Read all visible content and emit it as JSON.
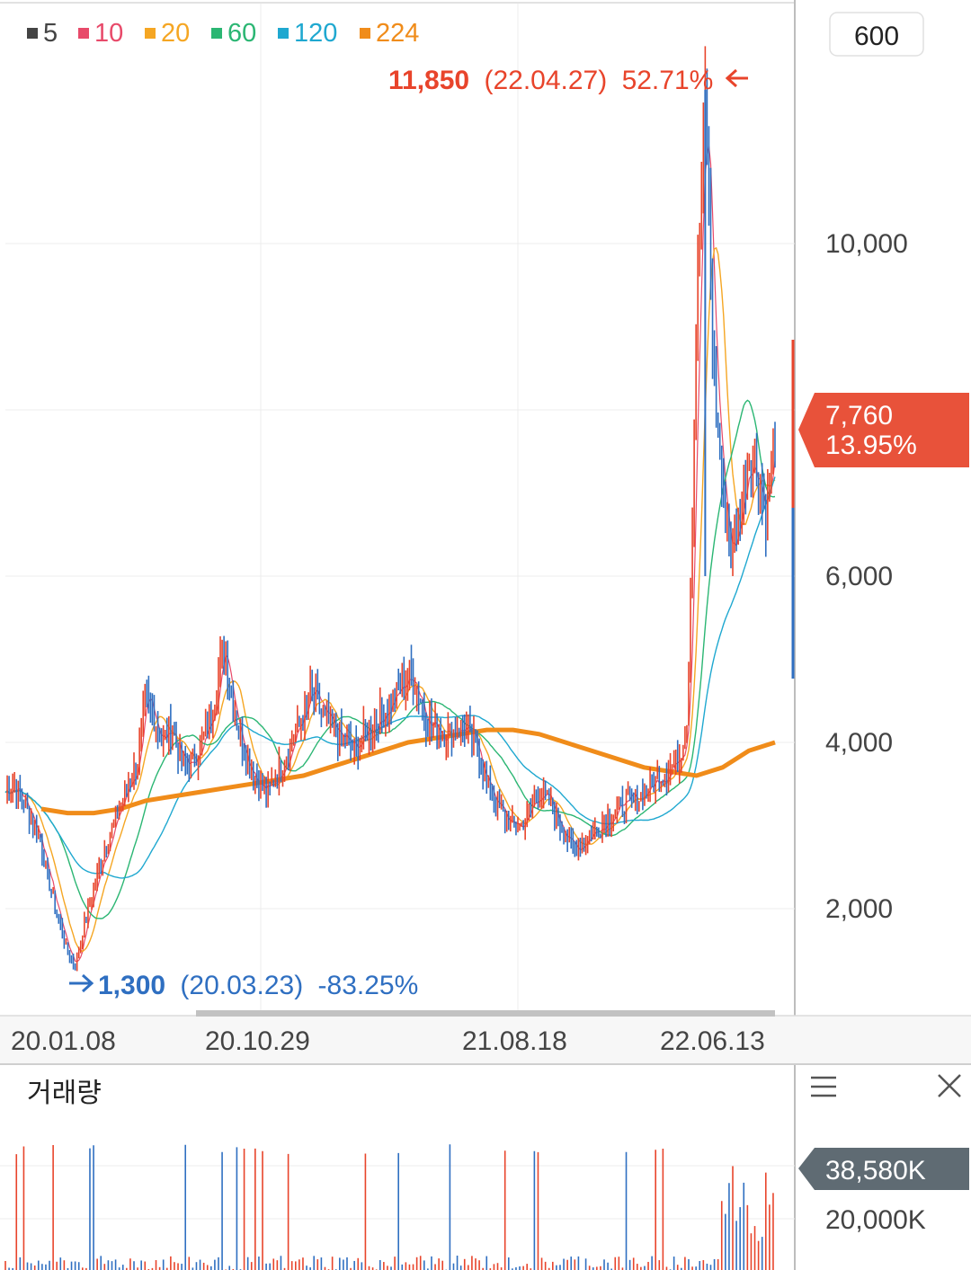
{
  "toolbar": {
    "period_value": "600"
  },
  "legend": [
    {
      "label": "5",
      "color": "#444444"
    },
    {
      "label": "10",
      "color": "#e84a6a"
    },
    {
      "label": "20",
      "color": "#f5a623"
    },
    {
      "label": "60",
      "color": "#2bb673"
    },
    {
      "label": "120",
      "color": "#1fa8d0"
    },
    {
      "label": "224",
      "color": "#f08c1a"
    }
  ],
  "price_axis": {
    "ticks": [
      "10,000",
      "6,000",
      "4,000",
      "2,000"
    ],
    "current_price": "7,760",
    "current_change": "13.95%"
  },
  "annotations": {
    "high": {
      "value": "11,850",
      "date": "(22.04.27)",
      "pct": "52.71%"
    },
    "low": {
      "value": "1,300",
      "date": "(20.03.23)",
      "pct": "-83.25%"
    }
  },
  "x_axis": {
    "ticks": [
      "20.01.08",
      "20.10.29",
      "21.08.18",
      "22.06.13"
    ]
  },
  "volume_panel": {
    "title": "거래량",
    "current_volume": "38,580K",
    "tick": "20,000K"
  },
  "colors": {
    "up": "#e8442b",
    "down": "#2f6fc1",
    "ma224": "#f08c1a",
    "ma20": "#f5a623",
    "ma60": "#2bb673",
    "ma120": "#1fa8d0",
    "ma10": "#e84a6a"
  },
  "chart_data": {
    "type": "line",
    "x_ticks": [
      "20.01.08",
      "20.10.29",
      "21.08.18",
      "22.06.13"
    ],
    "y_ticks": [
      2000,
      4000,
      6000,
      10000
    ],
    "ylim": [
      800,
      12800
    ],
    "price_series": {
      "name": "price",
      "values": [
        3400,
        3500,
        3300,
        3100,
        2800,
        2300,
        1900,
        1500,
        1300,
        1800,
        2200,
        2600,
        2900,
        3200,
        3500,
        3700,
        4500,
        4300,
        4000,
        4200,
        3800,
        3700,
        3900,
        4100,
        4600,
        5200,
        4500,
        4000,
        3700,
        3500,
        3400,
        3600,
        3800,
        4100,
        4300,
        4600,
        4400,
        4200,
        4100,
        4000,
        3900,
        4100,
        4200,
        4300,
        4500,
        4600,
        4800,
        4700,
        4300,
        4200,
        4100,
        4100,
        4200,
        4100,
        3900,
        3500,
        3300,
        3100,
        3000,
        3000,
        3200,
        3400,
        3300,
        3100,
        2900,
        2700,
        2800,
        2900,
        3000,
        3100,
        3200,
        3300,
        3300,
        3400,
        3500,
        3600,
        3700,
        3800,
        4300,
        9000,
        11850,
        8500,
        7000,
        6200,
        6800,
        7500,
        7200,
        6800,
        7760
      ]
    },
    "ma224": [
      3200,
      3150,
      3150,
      3200,
      3300,
      3350,
      3400,
      3450,
      3500,
      3550,
      3600,
      3700,
      3800,
      3900,
      4000,
      4050,
      4100,
      4150,
      4150,
      4100,
      4000,
      3900,
      3800,
      3700,
      3650,
      3600,
      3700,
      3900,
      4000
    ],
    "volume_tick": 20000,
    "current_volume": 38580
  }
}
